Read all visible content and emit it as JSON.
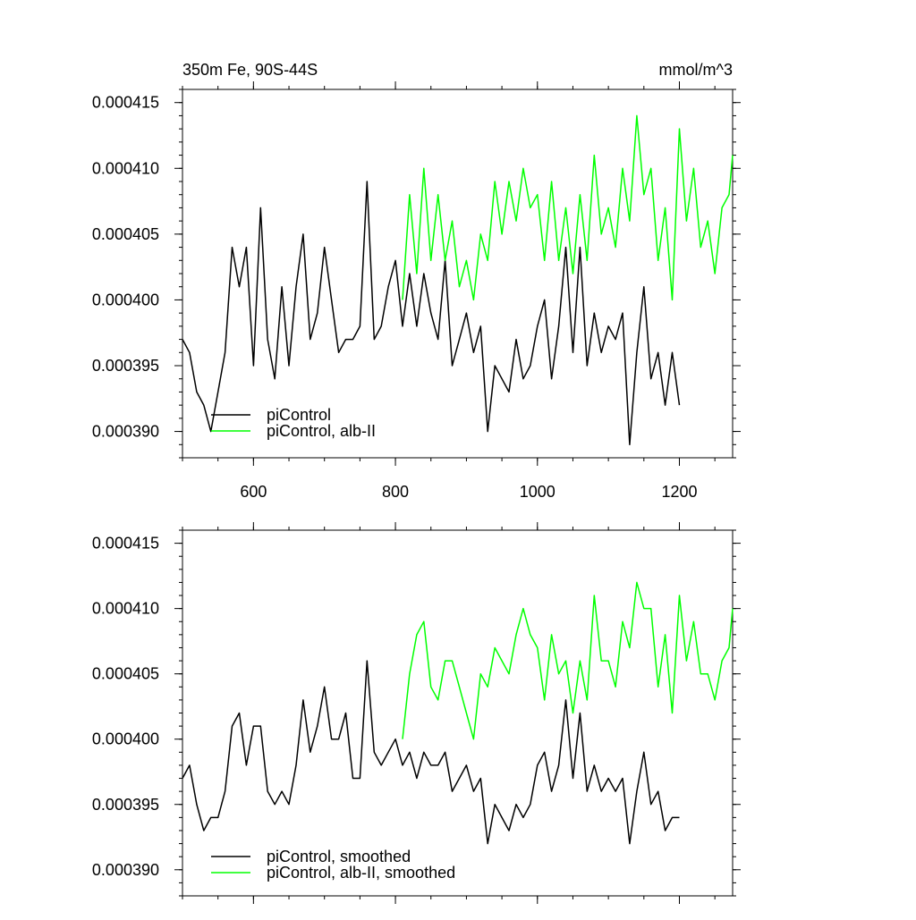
{
  "chart_data": [
    {
      "type": "line",
      "title": "350m Fe, 90S-44S",
      "units_label": "mmol/m^3",
      "xlim": [
        500,
        1275
      ],
      "ylim": [
        0.000388,
        0.000416
      ],
      "x_ticks": [
        600,
        800,
        1000,
        1200
      ],
      "x_tick_labels": [
        "600",
        "800",
        "1000",
        "1200"
      ],
      "y_ticks": [
        0.00039,
        0.000395,
        0.0004,
        0.000405,
        0.00041,
        0.000415
      ],
      "y_tick_labels": [
        "0.000390",
        "0.000395",
        "0.000400",
        "0.000405",
        "0.000410",
        "0.000415"
      ],
      "grid": false,
      "legend_position": "bottom-left",
      "series": [
        {
          "name": "piControl",
          "color": "#000000",
          "x": [
            500,
            510,
            520,
            530,
            540,
            550,
            560,
            570,
            580,
            590,
            600,
            610,
            620,
            630,
            640,
            650,
            660,
            670,
            680,
            690,
            700,
            710,
            720,
            730,
            740,
            750,
            760,
            770,
            780,
            790,
            800,
            810,
            820,
            830,
            840,
            850,
            860,
            870,
            880,
            890,
            900,
            910,
            920,
            930,
            940,
            950,
            960,
            970,
            980,
            990,
            1000,
            1010,
            1020,
            1030,
            1040,
            1050,
            1060,
            1070,
            1080,
            1090,
            1100,
            1110,
            1120,
            1130,
            1140,
            1150,
            1160,
            1170,
            1180,
            1190,
            1200
          ],
          "values": [
            0.000397,
            0.000396,
            0.000393,
            0.000392,
            0.00039,
            0.000393,
            0.000396,
            0.000404,
            0.000401,
            0.000404,
            0.000395,
            0.000407,
            0.000397,
            0.000394,
            0.000401,
            0.000395,
            0.000401,
            0.000405,
            0.000397,
            0.000399,
            0.000404,
            0.0004,
            0.000396,
            0.000397,
            0.000397,
            0.000398,
            0.000409,
            0.000397,
            0.000398,
            0.000401,
            0.000403,
            0.000398,
            0.000402,
            0.000398,
            0.000402,
            0.000399,
            0.000397,
            0.000403,
            0.000395,
            0.000397,
            0.000399,
            0.000396,
            0.000398,
            0.00039,
            0.000395,
            0.000394,
            0.000393,
            0.000397,
            0.000394,
            0.000395,
            0.000398,
            0.0004,
            0.000394,
            0.000398,
            0.000404,
            0.000396,
            0.000404,
            0.000395,
            0.000399,
            0.000396,
            0.000398,
            0.000397,
            0.000399,
            0.000389,
            0.000396,
            0.000401,
            0.000394,
            0.000396,
            0.000392,
            0.000396,
            0.000392
          ]
        },
        {
          "name": "piControl, alb-II",
          "color": "#00ff00",
          "x": [
            810,
            820,
            830,
            840,
            850,
            860,
            870,
            880,
            890,
            900,
            910,
            920,
            930,
            940,
            950,
            960,
            970,
            980,
            990,
            1000,
            1010,
            1020,
            1030,
            1040,
            1050,
            1060,
            1070,
            1080,
            1090,
            1100,
            1110,
            1120,
            1130,
            1140,
            1150,
            1160,
            1170,
            1180,
            1190,
            1200,
            1210,
            1220,
            1230,
            1240,
            1250,
            1260,
            1270,
            1275
          ],
          "values": [
            0.0004,
            0.000408,
            0.000402,
            0.00041,
            0.000403,
            0.000408,
            0.000403,
            0.000406,
            0.000401,
            0.000403,
            0.0004,
            0.000405,
            0.000403,
            0.000409,
            0.000405,
            0.000409,
            0.000406,
            0.00041,
            0.000407,
            0.000408,
            0.000403,
            0.000409,
            0.000403,
            0.000407,
            0.000402,
            0.000408,
            0.000403,
            0.000411,
            0.000405,
            0.000407,
            0.000404,
            0.00041,
            0.000406,
            0.000414,
            0.000408,
            0.00041,
            0.000403,
            0.000407,
            0.0004,
            0.000413,
            0.000406,
            0.00041,
            0.000404,
            0.000406,
            0.000402,
            0.000407,
            0.000408,
            0.000411
          ]
        }
      ]
    },
    {
      "type": "line",
      "xlim": [
        500,
        1275
      ],
      "ylim": [
        0.000388,
        0.000416
      ],
      "x_ticks": [
        600,
        800,
        1000,
        1200
      ],
      "y_ticks": [
        0.00039,
        0.000395,
        0.0004,
        0.000405,
        0.00041,
        0.000415
      ],
      "y_tick_labels": [
        "0.000390",
        "0.000395",
        "0.000400",
        "0.000405",
        "0.000410",
        "0.000415"
      ],
      "grid": false,
      "legend_position": "bottom-left",
      "series": [
        {
          "name": "piControl, smoothed",
          "color": "#000000",
          "x": [
            500,
            510,
            520,
            530,
            540,
            550,
            560,
            570,
            580,
            590,
            600,
            610,
            620,
            630,
            640,
            650,
            660,
            670,
            680,
            690,
            700,
            710,
            720,
            730,
            740,
            750,
            760,
            770,
            780,
            790,
            800,
            810,
            820,
            830,
            840,
            850,
            860,
            870,
            880,
            890,
            900,
            910,
            920,
            930,
            940,
            950,
            960,
            970,
            980,
            990,
            1000,
            1010,
            1020,
            1030,
            1040,
            1050,
            1060,
            1070,
            1080,
            1090,
            1100,
            1110,
            1120,
            1130,
            1140,
            1150,
            1160,
            1170,
            1180,
            1190,
            1200
          ],
          "values": [
            0.000397,
            0.000398,
            0.000395,
            0.000393,
            0.000394,
            0.000394,
            0.000396,
            0.000401,
            0.000402,
            0.000398,
            0.000401,
            0.000401,
            0.000396,
            0.000395,
            0.000396,
            0.000395,
            0.000398,
            0.000403,
            0.000399,
            0.000401,
            0.000404,
            0.0004,
            0.0004,
            0.000402,
            0.000397,
            0.000397,
            0.000406,
            0.000399,
            0.000398,
            0.000399,
            0.0004,
            0.000398,
            0.000399,
            0.000397,
            0.000399,
            0.000398,
            0.000398,
            0.000399,
            0.000396,
            0.000397,
            0.000398,
            0.000396,
            0.000397,
            0.000392,
            0.000395,
            0.000394,
            0.000393,
            0.000395,
            0.000394,
            0.000395,
            0.000398,
            0.000399,
            0.000396,
            0.000398,
            0.000403,
            0.000397,
            0.000402,
            0.000396,
            0.000398,
            0.000396,
            0.000397,
            0.000396,
            0.000397,
            0.000392,
            0.000396,
            0.000399,
            0.000395,
            0.000396,
            0.000393,
            0.000394,
            0.000394
          ]
        },
        {
          "name": "piControl, alb-II, smoothed",
          "color": "#00ff00",
          "x": [
            810,
            820,
            830,
            840,
            850,
            860,
            870,
            880,
            890,
            900,
            910,
            920,
            930,
            940,
            950,
            960,
            970,
            980,
            990,
            1000,
            1010,
            1020,
            1030,
            1040,
            1050,
            1060,
            1070,
            1080,
            1090,
            1100,
            1110,
            1120,
            1130,
            1140,
            1150,
            1160,
            1170,
            1180,
            1190,
            1200,
            1210,
            1220,
            1230,
            1240,
            1250,
            1260,
            1270,
            1275
          ],
          "values": [
            0.0004,
            0.000405,
            0.000408,
            0.000409,
            0.000404,
            0.000403,
            0.000406,
            0.000406,
            0.000404,
            0.000402,
            0.0004,
            0.000405,
            0.000404,
            0.000407,
            0.000406,
            0.000405,
            0.000408,
            0.00041,
            0.000408,
            0.000407,
            0.000403,
            0.000408,
            0.000405,
            0.000406,
            0.000402,
            0.000406,
            0.000403,
            0.000411,
            0.000406,
            0.000406,
            0.000404,
            0.000409,
            0.000407,
            0.000412,
            0.00041,
            0.00041,
            0.000404,
            0.000408,
            0.000402,
            0.000411,
            0.000406,
            0.000409,
            0.000405,
            0.000405,
            0.000403,
            0.000406,
            0.000407,
            0.00041
          ]
        }
      ]
    }
  ]
}
